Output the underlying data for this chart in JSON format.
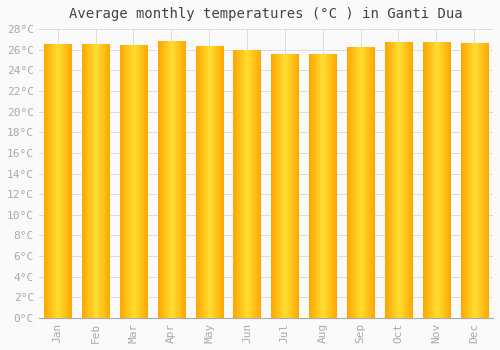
{
  "title": "Average monthly temperatures (°C ) in Ganti Dua",
  "months": [
    "Jan",
    "Feb",
    "Mar",
    "Apr",
    "May",
    "Jun",
    "Jul",
    "Aug",
    "Sep",
    "Oct",
    "Nov",
    "Dec"
  ],
  "temperatures": [
    26.5,
    26.5,
    26.4,
    26.8,
    26.3,
    25.9,
    25.5,
    25.5,
    26.2,
    26.7,
    26.7,
    26.6
  ],
  "bar_color_center": "#FFD700",
  "bar_color_edge": "#FFA500",
  "background_color": "#FAFAFA",
  "grid_color": "#DDDDDD",
  "ylim": [
    0,
    28
  ],
  "ytick_step": 2,
  "title_fontsize": 10,
  "tick_fontsize": 8,
  "tick_color": "#AAAAAA",
  "title_font": "monospace",
  "bar_width": 0.72
}
